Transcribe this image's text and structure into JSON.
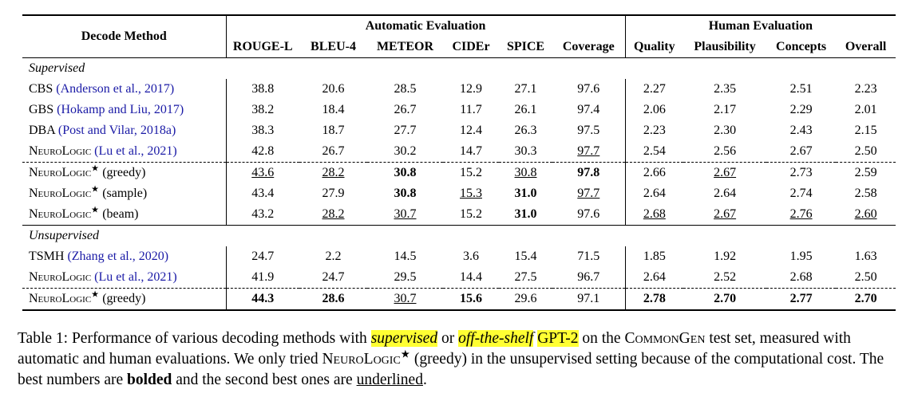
{
  "table": {
    "method_header": "Decode Method",
    "groups": [
      {
        "title": "Automatic Evaluation",
        "columns": [
          "ROUGE-L",
          "BLEU-4",
          "METEOR",
          "CIDEr",
          "SPICE",
          "Coverage"
        ]
      },
      {
        "title": "Human Evaluation",
        "columns": [
          "Quality",
          "Plausibility",
          "Concepts",
          "Overall"
        ]
      }
    ],
    "sections": [
      {
        "label": "Supervised",
        "blocks": [
          [
            {
              "method": {
                "name": "CBS",
                "cite": "(Anderson et al., 2017)"
              },
              "cells": [
                {
                  "text": "38.8"
                },
                {
                  "text": "20.6"
                },
                {
                  "text": "28.5"
                },
                {
                  "text": "12.9"
                },
                {
                  "text": "27.1"
                },
                {
                  "text": "97.6"
                },
                {
                  "text": "2.27"
                },
                {
                  "text": "2.35"
                },
                {
                  "text": "2.51"
                },
                {
                  "text": "2.23"
                }
              ]
            },
            {
              "method": {
                "name": "GBS",
                "cite": "(Hokamp and Liu, 2017)"
              },
              "cells": [
                {
                  "text": "38.2"
                },
                {
                  "text": "18.4"
                },
                {
                  "text": "26.7"
                },
                {
                  "text": "11.7"
                },
                {
                  "text": "26.1"
                },
                {
                  "text": "97.4"
                },
                {
                  "text": "2.06"
                },
                {
                  "text": "2.17"
                },
                {
                  "text": "2.29"
                },
                {
                  "text": "2.01"
                }
              ]
            },
            {
              "method": {
                "name": "DBA",
                "cite": "(Post and Vilar, 2018a)"
              },
              "cells": [
                {
                  "text": "38.3"
                },
                {
                  "text": "18.7"
                },
                {
                  "text": "27.7"
                },
                {
                  "text": "12.4"
                },
                {
                  "text": "26.3"
                },
                {
                  "text": "97.5"
                },
                {
                  "text": "2.23"
                },
                {
                  "text": "2.30"
                },
                {
                  "text": "2.43"
                },
                {
                  "text": "2.15"
                }
              ]
            },
            {
              "method": {
                "name": "NeuroLogic",
                "smallcaps": true,
                "cite": "(Lu et al., 2021)"
              },
              "cells": [
                {
                  "text": "42.8"
                },
                {
                  "text": "26.7"
                },
                {
                  "text": "30.2"
                },
                {
                  "text": "14.7"
                },
                {
                  "text": "30.3"
                },
                {
                  "text": "97.7",
                  "underline": true
                },
                {
                  "text": "2.54"
                },
                {
                  "text": "2.56"
                },
                {
                  "text": "2.67"
                },
                {
                  "text": "2.50"
                }
              ]
            }
          ],
          [
            {
              "method": {
                "name": "NeuroLogic",
                "smallcaps": true,
                "sup": "★",
                "variant": "(greedy)"
              },
              "cells": [
                {
                  "text": "43.6",
                  "underline": true
                },
                {
                  "text": "28.2",
                  "underline": true
                },
                {
                  "text": "30.8",
                  "bold": true
                },
                {
                  "text": "15.2"
                },
                {
                  "text": "30.8",
                  "underline": true
                },
                {
                  "text": "97.8",
                  "bold": true
                },
                {
                  "text": "2.66"
                },
                {
                  "text": "2.67",
                  "underline": true
                },
                {
                  "text": "2.73"
                },
                {
                  "text": "2.59"
                }
              ]
            },
            {
              "method": {
                "name": "NeuroLogic",
                "smallcaps": true,
                "sup": "★",
                "variant": "(sample)"
              },
              "cells": [
                {
                  "text": "43.4"
                },
                {
                  "text": "27.9"
                },
                {
                  "text": "30.8",
                  "bold": true
                },
                {
                  "text": "15.3",
                  "underline": true
                },
                {
                  "text": "31.0",
                  "bold": true
                },
                {
                  "text": "97.7",
                  "underline": true
                },
                {
                  "text": "2.64"
                },
                {
                  "text": "2.64"
                },
                {
                  "text": "2.74"
                },
                {
                  "text": "2.58"
                }
              ]
            },
            {
              "method": {
                "name": "NeuroLogic",
                "smallcaps": true,
                "sup": "★",
                "variant": "(beam)"
              },
              "cells": [
                {
                  "text": "43.2"
                },
                {
                  "text": "28.2",
                  "underline": true
                },
                {
                  "text": "30.7",
                  "underline": true
                },
                {
                  "text": "15.2"
                },
                {
                  "text": "31.0",
                  "bold": true
                },
                {
                  "text": "97.6"
                },
                {
                  "text": "2.68",
                  "underline": true
                },
                {
                  "text": "2.67",
                  "underline": true
                },
                {
                  "text": "2.76",
                  "underline": true
                },
                {
                  "text": "2.60",
                  "underline": true
                }
              ]
            }
          ]
        ]
      },
      {
        "label": "Unsupervised",
        "blocks": [
          [
            {
              "method": {
                "name": "TSMH",
                "cite": "(Zhang et al., 2020)"
              },
              "cells": [
                {
                  "text": "24.7"
                },
                {
                  "text": "2.2"
                },
                {
                  "text": "14.5"
                },
                {
                  "text": "3.6"
                },
                {
                  "text": "15.4"
                },
                {
                  "text": "71.5"
                },
                {
                  "text": "1.85"
                },
                {
                  "text": "1.92"
                },
                {
                  "text": "1.95"
                },
                {
                  "text": "1.63"
                }
              ]
            },
            {
              "method": {
                "name": "NeuroLogic",
                "smallcaps": true,
                "cite": "(Lu et al., 2021)"
              },
              "cells": [
                {
                  "text": "41.9"
                },
                {
                  "text": "24.7"
                },
                {
                  "text": "29.5"
                },
                {
                  "text": "14.4"
                },
                {
                  "text": "27.5"
                },
                {
                  "text": "96.7"
                },
                {
                  "text": "2.64"
                },
                {
                  "text": "2.52"
                },
                {
                  "text": "2.68"
                },
                {
                  "text": "2.50"
                }
              ]
            }
          ],
          [
            {
              "method": {
                "name": "NeuroLogic",
                "smallcaps": true,
                "sup": "★",
                "variant": "(greedy)"
              },
              "cells": [
                {
                  "text": "44.3",
                  "bold": true
                },
                {
                  "text": "28.6",
                  "bold": true
                },
                {
                  "text": "30.7",
                  "underline": true
                },
                {
                  "text": "15.6",
                  "bold": true
                },
                {
                  "text": "29.6"
                },
                {
                  "text": "97.1"
                },
                {
                  "text": "2.78",
                  "bold": true
                },
                {
                  "text": "2.70",
                  "bold": true
                },
                {
                  "text": "2.77",
                  "bold": true
                },
                {
                  "text": "2.70",
                  "bold": true
                }
              ]
            }
          ]
        ]
      }
    ]
  },
  "caption": [
    {
      "text": "Table 1: Performance of various decoding methods with "
    },
    {
      "text": "supervised",
      "style": [
        "italic",
        "highlight"
      ]
    },
    {
      "text": " or "
    },
    {
      "text": "off-the-shelf",
      "style": [
        "italic",
        "highlight"
      ]
    },
    {
      "text": " "
    },
    {
      "text": "GPT-2",
      "style": [
        "highlight"
      ]
    },
    {
      "text": " on the "
    },
    {
      "text": "CommonGen",
      "style": [
        "smallcaps"
      ]
    },
    {
      "text": " test set, measured with automatic and human evaluations. We only tried "
    },
    {
      "text": "NeuroLogic",
      "style": [
        "smallcaps"
      ]
    },
    {
      "text": "★",
      "style": [
        "sup"
      ]
    },
    {
      "text": " (greedy) in the unsupervised setting because of the computational cost. The best numbers are "
    },
    {
      "text": "bolded",
      "style": [
        "bold"
      ]
    },
    {
      "text": " and the second best ones are "
    },
    {
      "text": "underlined",
      "style": [
        "underline"
      ]
    },
    {
      "text": "."
    }
  ]
}
